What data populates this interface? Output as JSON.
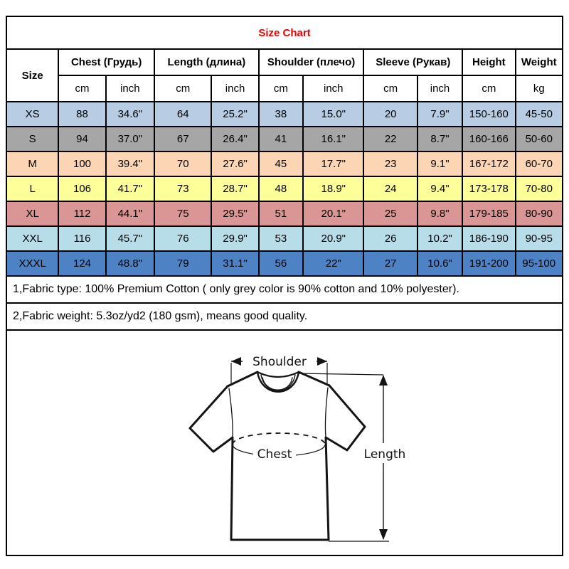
{
  "page": {
    "title": "Size Chart",
    "title_color": "#ee0000"
  },
  "table": {
    "size_header": "Size",
    "groups": [
      {
        "label": "Chest  (Грудь)",
        "unit1": "cm",
        "unit2": "inch"
      },
      {
        "label": "Length (длина)",
        "unit1": "cm",
        "unit2": "inch"
      },
      {
        "label": "Shoulder (плечо)",
        "unit1": "cm",
        "unit2": "inch"
      },
      {
        "label": "Sleeve (Рукав)",
        "unit1": "cm",
        "unit2": "inch"
      },
      {
        "label": "Height",
        "unit1": "cm"
      },
      {
        "label": "Weight",
        "unit1": "kg"
      }
    ],
    "rows": [
      {
        "size": "XS",
        "bg": "#B8CCE4",
        "values": [
          "88",
          "34.6\"",
          "64",
          "25.2\"",
          "38",
          "15.0\"",
          "20",
          "7.9\"",
          "150-160",
          "45-50"
        ]
      },
      {
        "size": "S",
        "bg": "#A6A6A6",
        "values": [
          "94",
          "37.0\"",
          "67",
          "26.4\"",
          "41",
          "16.1\"",
          "22",
          "8.7\"",
          "160-166",
          "50-60"
        ]
      },
      {
        "size": "M",
        "bg": "#FCD5B4",
        "values": [
          "100",
          "39.4\"",
          "70",
          "27.6\"",
          "45",
          "17.7\"",
          "23",
          "9.1\"",
          "167-172",
          "60-70"
        ]
      },
      {
        "size": "L",
        "bg": "#FFFF99",
        "values": [
          "106",
          "41.7\"",
          "73",
          "28.7\"",
          "48",
          "18.9\"",
          "24",
          "9.4\"",
          "173-178",
          "70-80"
        ]
      },
      {
        "size": "XL",
        "bg": "#D99694",
        "values": [
          "112",
          "44.1\"",
          "75",
          "29.5\"",
          "51",
          "20.1\"",
          "25",
          "9.8\"",
          "179-185",
          "80-90"
        ]
      },
      {
        "size": "XXL",
        "bg": "#B7DEE8",
        "values": [
          "116",
          "45.7\"",
          "76",
          "29.9\"",
          "53",
          "20.9\"",
          "26",
          "10.2\"",
          "186-190",
          "90-95"
        ]
      },
      {
        "size": "XXXL",
        "bg": "#4D82C4",
        "values": [
          "124",
          "48.8\"",
          "79",
          "31.1\"",
          "56",
          "22\"",
          "27",
          "10.6\"",
          "191-200",
          "95-100"
        ]
      }
    ]
  },
  "notes": [
    "1,Fabric type: 100% Premium Cotton ( only grey color is 90% cotton and 10% polyester).",
    "2,Fabric weight: 5.3oz/yd2 (180 gsm), means good quality."
  ],
  "diagram": {
    "shoulder_label": "Shoulder",
    "chest_label": "Chest",
    "length_label": "Length"
  }
}
